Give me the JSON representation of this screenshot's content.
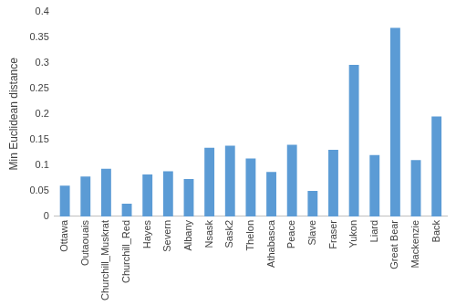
{
  "chart_data": {
    "type": "bar",
    "y_label": "Min Euclidean distance",
    "categories": [
      "Ottawa",
      "Outaouais",
      "Churchill_Muskrat",
      "Churchill_Red",
      "Hayes",
      "Severn",
      "Albany",
      "Nsask",
      "Sask2",
      "Thelon",
      "Athabasca",
      "Peace",
      "Slave",
      "Fraser",
      "Yukon",
      "Liard",
      "Great Bear",
      "Mackenzie",
      "Back"
    ],
    "values": [
      0.06,
      0.078,
      0.093,
      0.025,
      0.082,
      0.088,
      0.073,
      0.134,
      0.138,
      0.113,
      0.087,
      0.14,
      0.05,
      0.13,
      0.296,
      0.12,
      0.368,
      0.11,
      0.195
    ],
    "color": "#5b9bd5",
    "ylim": [
      0,
      0.4
    ],
    "yticks": [
      0,
      0.05,
      0.1,
      0.15,
      0.2,
      0.25,
      0.3,
      0.35,
      0.4
    ],
    "grid": false
  }
}
